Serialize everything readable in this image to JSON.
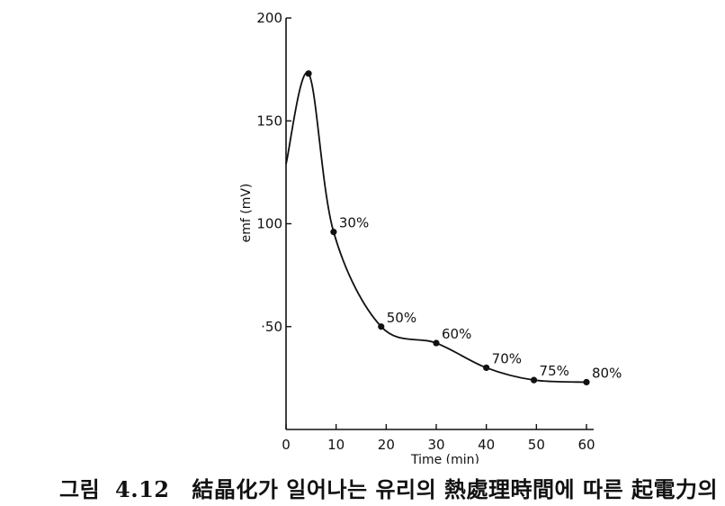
{
  "chart_data": {
    "type": "line",
    "xlabel": "Time (min)",
    "ylabel": "emf (mV)",
    "xlim": [
      0,
      60
    ],
    "ylim": [
      0,
      200
    ],
    "x_ticks": [
      0,
      10,
      20,
      30,
      40,
      50,
      60
    ],
    "y_ticks": [
      {
        "value": 50,
        "label": "·50"
      },
      {
        "value": 100,
        "label": "100"
      },
      {
        "value": 150,
        "label": "150"
      },
      {
        "value": 200,
        "label": "200"
      }
    ],
    "grid": false,
    "series": [
      {
        "points": [
          {
            "x": 4.5,
            "y": 173,
            "label": ""
          },
          {
            "x": 9.5,
            "y": 96,
            "label": "30%"
          },
          {
            "x": 19,
            "y": 50,
            "label": "50%"
          },
          {
            "x": 30,
            "y": 42,
            "label": "60%"
          },
          {
            "x": 40,
            "y": 30,
            "label": "70%"
          },
          {
            "x": 49.5,
            "y": 24,
            "label": "75%"
          },
          {
            "x": 60,
            "y": 23,
            "label": "80%"
          }
        ],
        "curve_start": {
          "x": 0,
          "y": 129
        }
      }
    ]
  },
  "caption": {
    "prefix": "그림",
    "number": "4.12",
    "text": "結晶化가 일어나는 유리의 熱處理時間에 따른 起電力의"
  }
}
